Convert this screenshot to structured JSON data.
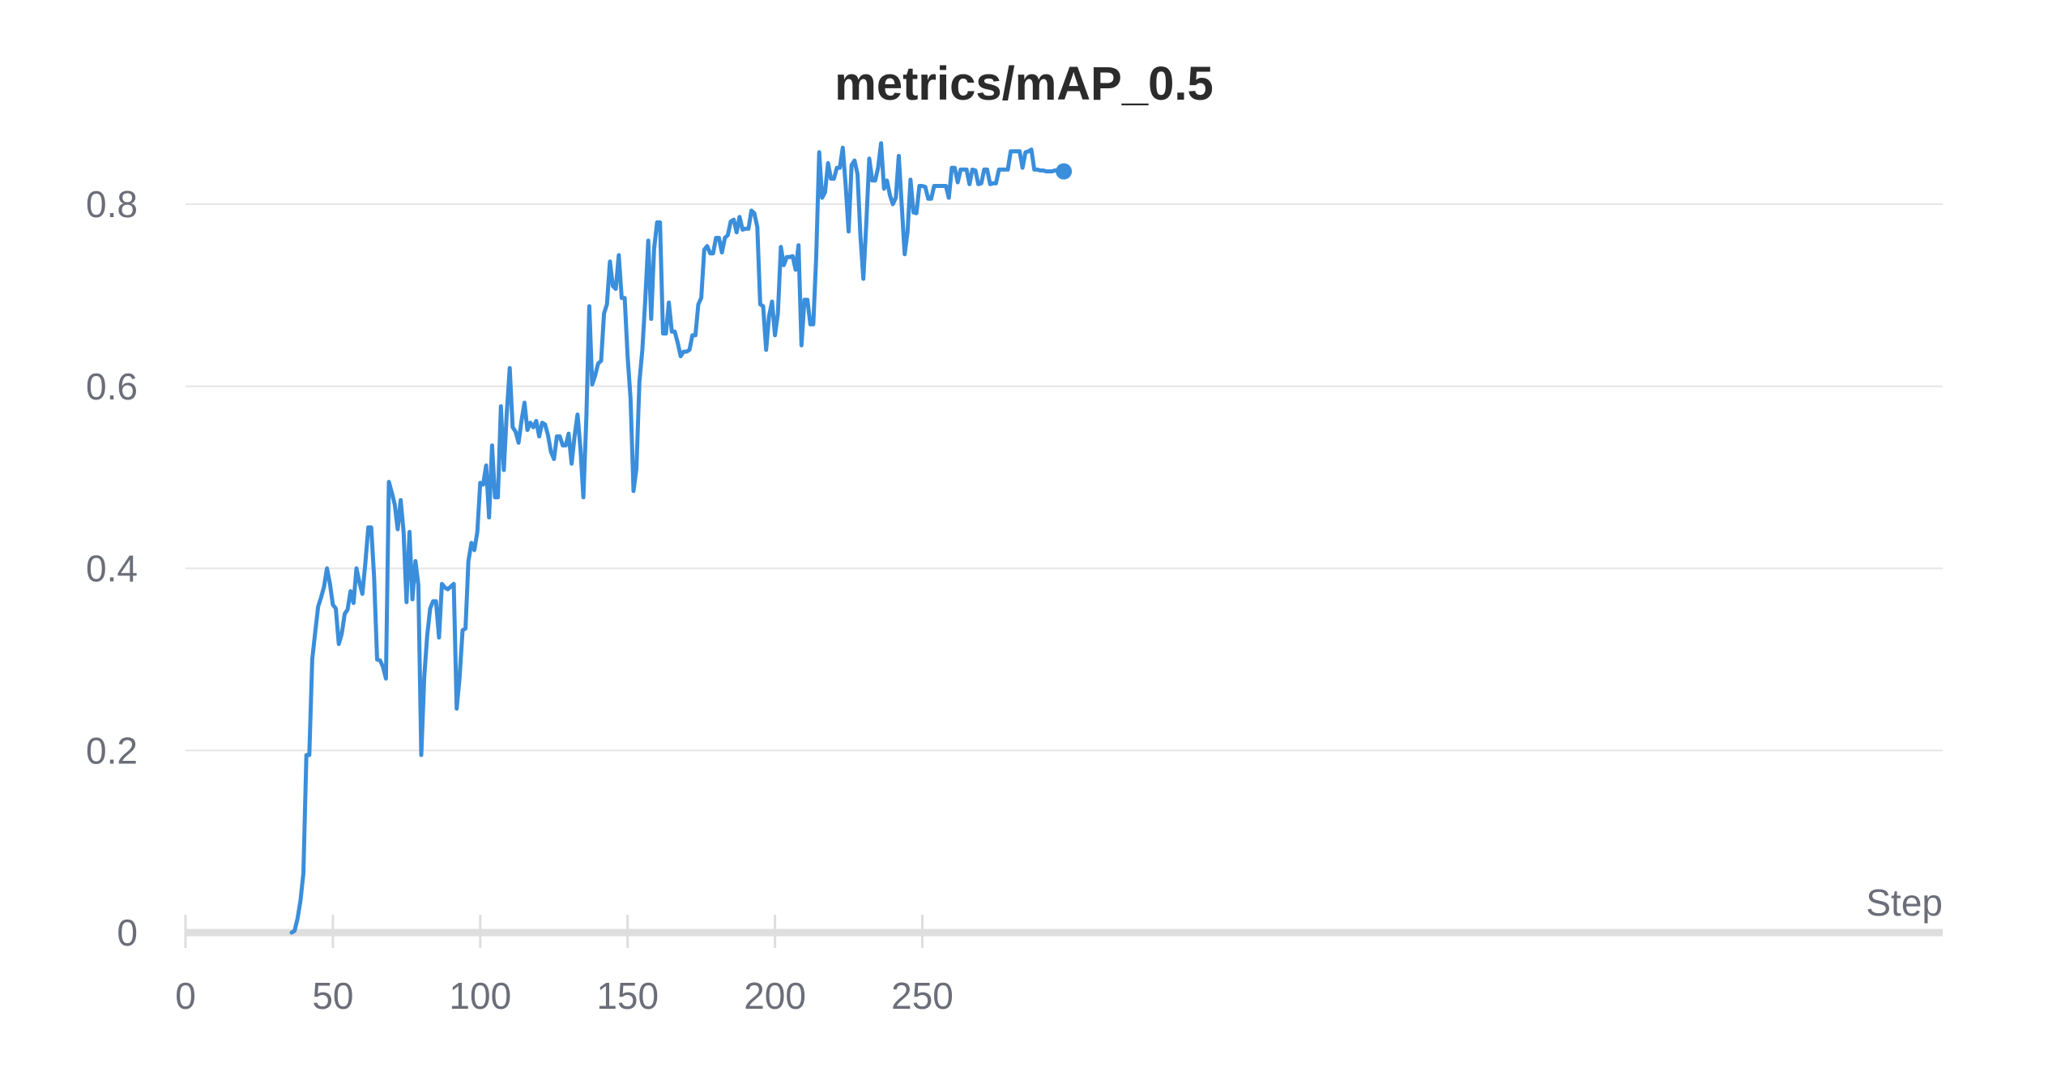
{
  "chart_data": {
    "type": "line",
    "title": "metrics/mAP_0.5",
    "xlabel": "Step",
    "ylabel": "",
    "xlim": [
      0,
      298
    ],
    "ylim": [
      0,
      0.88
    ],
    "x_ticks": [
      0,
      50,
      100,
      150,
      200,
      250
    ],
    "x_tick_labels": [
      "0",
      "50",
      "100",
      "150",
      "200",
      "250"
    ],
    "y_ticks": [
      0,
      0.2,
      0.4,
      0.6,
      0.8
    ],
    "y_tick_labels": [
      "0",
      "0.2",
      "0.4",
      "0.6",
      "0.8"
    ],
    "grid": true,
    "legend": "none",
    "colors": {
      "series": "#3a8edb"
    },
    "series": [
      {
        "x": [
          36,
          37,
          38,
          39,
          40,
          41,
          42,
          43,
          44,
          45,
          46,
          47,
          48,
          49,
          50,
          51,
          52,
          53,
          54,
          55,
          56,
          57,
          58,
          59,
          60,
          61,
          62,
          63,
          64,
          65,
          66,
          67,
          68,
          69,
          70,
          71,
          72,
          73,
          74,
          75,
          76,
          77,
          78,
          79,
          80,
          81,
          82,
          83,
          84,
          85,
          86,
          87,
          88,
          89,
          90,
          91,
          92,
          93,
          94,
          95,
          96,
          97,
          98,
          99,
          100,
          101,
          102,
          103,
          104,
          105,
          106,
          107,
          108,
          109,
          110,
          111,
          112,
          113,
          114,
          115,
          116,
          117,
          118,
          119,
          120,
          121,
          122,
          123,
          124,
          125,
          126,
          127,
          128,
          129,
          130,
          131,
          132,
          133,
          134,
          135,
          136,
          137,
          138,
          139,
          140,
          141,
          142,
          143,
          144,
          145,
          146,
          147,
          148,
          149,
          150,
          151,
          152,
          153,
          154,
          155,
          156,
          157,
          158,
          159,
          160,
          161,
          162,
          163,
          164,
          165,
          166,
          167,
          168,
          169,
          170,
          171,
          172,
          173,
          174,
          175,
          176,
          177,
          178,
          179,
          180,
          181,
          182,
          183,
          184,
          185,
          186,
          187,
          188,
          189,
          190,
          191,
          192,
          193,
          194,
          195,
          196,
          197,
          198,
          199,
          200,
          201,
          202,
          203,
          204,
          205,
          206,
          207,
          208,
          209,
          210,
          211,
          212,
          213,
          214,
          215,
          216,
          217,
          218,
          219,
          220,
          221,
          222,
          223,
          224,
          225,
          226,
          227,
          228,
          229,
          230,
          231,
          232,
          233,
          234,
          235,
          236,
          237,
          238,
          239,
          240,
          241,
          242,
          243,
          244,
          245,
          246,
          247,
          248,
          249,
          250,
          251,
          252,
          253,
          254,
          255,
          256,
          257,
          258,
          259,
          260,
          261,
          262,
          263,
          264,
          265,
          266,
          267,
          268,
          269,
          270,
          271,
          272,
          273,
          274,
          275,
          276,
          277,
          278,
          279,
          280,
          281,
          282,
          283,
          284,
          285,
          286,
          287,
          288,
          289,
          290,
          291,
          292,
          293,
          294,
          295,
          296,
          297,
          298
        ],
        "y": [
          0.0,
          0.002,
          0.015,
          0.035,
          0.065,
          0.195,
          0.195,
          0.3,
          0.33,
          0.358,
          0.368,
          0.38,
          0.4,
          0.383,
          0.36,
          0.356,
          0.317,
          0.328,
          0.35,
          0.355,
          0.375,
          0.362,
          0.4,
          0.385,
          0.372,
          0.405,
          0.445,
          0.445,
          0.39,
          0.3,
          0.299,
          0.292,
          0.279,
          0.495,
          0.483,
          0.47,
          0.443,
          0.475,
          0.44,
          0.363,
          0.44,
          0.366,
          0.408,
          0.382,
          0.195,
          0.281,
          0.326,
          0.356,
          0.364,
          0.364,
          0.324,
          0.383,
          0.379,
          0.377,
          0.38,
          0.383,
          0.246,
          0.28,
          0.332,
          0.334,
          0.408,
          0.428,
          0.42,
          0.44,
          0.494,
          0.492,
          0.513,
          0.456,
          0.535,
          0.478,
          0.478,
          0.578,
          0.508,
          0.57,
          0.62,
          0.555,
          0.55,
          0.538,
          0.562,
          0.582,
          0.552,
          0.56,
          0.555,
          0.562,
          0.545,
          0.56,
          0.558,
          0.546,
          0.528,
          0.52,
          0.545,
          0.545,
          0.535,
          0.535,
          0.548,
          0.515,
          0.545,
          0.569,
          0.532,
          0.478,
          0.566,
          0.688,
          0.602,
          0.612,
          0.625,
          0.628,
          0.68,
          0.69,
          0.737,
          0.71,
          0.707,
          0.744,
          0.697,
          0.697,
          0.633,
          0.587,
          0.485,
          0.51,
          0.605,
          0.64,
          0.695,
          0.76,
          0.674,
          0.751,
          0.78,
          0.78,
          0.658,
          0.658,
          0.692,
          0.66,
          0.66,
          0.648,
          0.633,
          0.638,
          0.638,
          0.64,
          0.656,
          0.656,
          0.69,
          0.697,
          0.75,
          0.754,
          0.746,
          0.746,
          0.763,
          0.763,
          0.747,
          0.763,
          0.766,
          0.781,
          0.783,
          0.769,
          0.786,
          0.772,
          0.773,
          0.773,
          0.793,
          0.79,
          0.775,
          0.69,
          0.688,
          0.64,
          0.677,
          0.693,
          0.656,
          0.68,
          0.753,
          0.733,
          0.742,
          0.742,
          0.743,
          0.728,
          0.755,
          0.645,
          0.695,
          0.695,
          0.668,
          0.668,
          0.742,
          0.857,
          0.807,
          0.813,
          0.845,
          0.828,
          0.828,
          0.84,
          0.84,
          0.862,
          0.82,
          0.77,
          0.843,
          0.848,
          0.833,
          0.765,
          0.718,
          0.78,
          0.85,
          0.826,
          0.826,
          0.84,
          0.867,
          0.817,
          0.826,
          0.81,
          0.8,
          0.807,
          0.853,
          0.8,
          0.745,
          0.77,
          0.827,
          0.791,
          0.79,
          0.82,
          0.82,
          0.819,
          0.806,
          0.806,
          0.82,
          0.82,
          0.82,
          0.82,
          0.82,
          0.807,
          0.84,
          0.84,
          0.824,
          0.838,
          0.838,
          0.838,
          0.822,
          0.838,
          0.837,
          0.822,
          0.823,
          0.838,
          0.838,
          0.822,
          0.823,
          0.823,
          0.838,
          0.838,
          0.838,
          0.838,
          0.858,
          0.858,
          0.858,
          0.858,
          0.84,
          0.857,
          0.858,
          0.86,
          0.838,
          0.838,
          0.837,
          0.837,
          0.836,
          0.836,
          0.836,
          0.837,
          0.837,
          0.836,
          0.836
        ]
      }
    ]
  }
}
